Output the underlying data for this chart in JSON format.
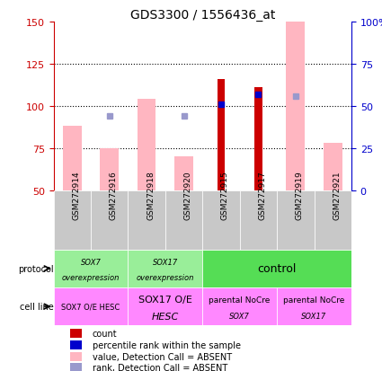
{
  "title": "GDS3300 / 1556436_at",
  "samples": [
    "GSM272914",
    "GSM272916",
    "GSM272918",
    "GSM272920",
    "GSM272915",
    "GSM272917",
    "GSM272919",
    "GSM272921"
  ],
  "count_values": [
    null,
    null,
    null,
    null,
    116,
    111,
    null,
    null
  ],
  "percentile_values": [
    null,
    null,
    null,
    null,
    101,
    107,
    null,
    null
  ],
  "pink_bar_values": [
    88,
    75,
    104,
    70,
    null,
    null,
    150,
    78
  ],
  "blue_square_values": [
    null,
    94,
    null,
    94,
    null,
    null,
    106,
    null
  ],
  "ylim_left": [
    50,
    150
  ],
  "ylim_right": [
    0,
    100
  ],
  "yticks_left": [
    50,
    75,
    100,
    125,
    150
  ],
  "yticks_right": [
    0,
    25,
    50,
    75,
    100
  ],
  "ybase": 50,
  "pink_bar_color": "#FFB6C1",
  "red_bar_color": "#CC0000",
  "blue_dot_color": "#0000CC",
  "blue_sq_color": "#9999CC",
  "gray_bg": "#C8C8C8",
  "left_axis_color": "#CC0000",
  "right_axis_color": "#0000CC",
  "prot_light_green": "#99EE99",
  "prot_bright_green": "#55DD55",
  "cell_line_color": "#FF88FF",
  "legend_items": [
    {
      "color": "#CC0000",
      "label": "count"
    },
    {
      "color": "#0000CC",
      "label": "percentile rank within the sample"
    },
    {
      "color": "#FFB6C1",
      "label": "value, Detection Call = ABSENT"
    },
    {
      "color": "#9999CC",
      "label": "rank, Detection Call = ABSENT"
    }
  ]
}
